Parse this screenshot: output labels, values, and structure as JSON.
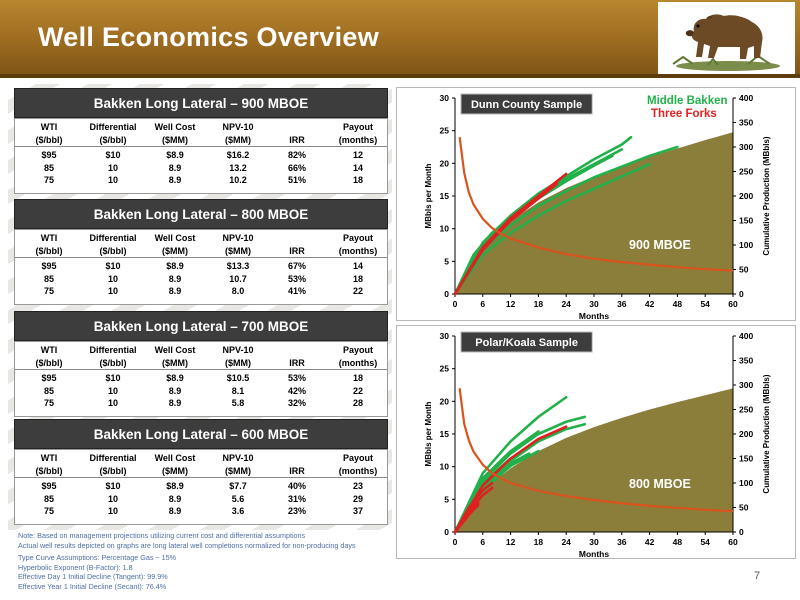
{
  "header": {
    "title": "Well Economics Overview"
  },
  "tables": [
    {
      "title": "Bakken Long Lateral – 900 MBOE",
      "head1": [
        "WTI",
        "Differential",
        "Well Cost",
        "NPV-10",
        "",
        "Payout"
      ],
      "head2": [
        "($/bbl)",
        "($/bbl)",
        "($MM)",
        "($MM)",
        "IRR",
        "(months)"
      ],
      "rows": [
        [
          "$95",
          "$10",
          "$8.9",
          "$16.2",
          "82%",
          "12"
        ],
        [
          "85",
          "10",
          "8.9",
          "13.2",
          "66%",
          "14"
        ],
        [
          "75",
          "10",
          "8.9",
          "10.2",
          "51%",
          "18"
        ]
      ]
    },
    {
      "title": "Bakken Long Lateral – 800 MBOE",
      "head1": [
        "WTI",
        "Differential",
        "Well Cost",
        "NPV-10",
        "",
        "Payout"
      ],
      "head2": [
        "($/bbl)",
        "($/bbl)",
        "($MM)",
        "($MM)",
        "IRR",
        "(months)"
      ],
      "rows": [
        [
          "$95",
          "$10",
          "$8.9",
          "$13.3",
          "67%",
          "14"
        ],
        [
          "85",
          "10",
          "8.9",
          "10.7",
          "53%",
          "18"
        ],
        [
          "75",
          "10",
          "8.9",
          "8.0",
          "41%",
          "22"
        ]
      ]
    },
    {
      "title": "Bakken Long Lateral – 700 MBOE",
      "head1": [
        "WTI",
        "Differential",
        "Well Cost",
        "NPV-10",
        "",
        "Payout"
      ],
      "head2": [
        "($/bbl)",
        "($/bbl)",
        "($MM)",
        "($MM)",
        "IRR",
        "(months)"
      ],
      "rows": [
        [
          "$95",
          "$10",
          "$8.9",
          "$10.5",
          "53%",
          "18"
        ],
        [
          "85",
          "10",
          "8.9",
          "8.1",
          "42%",
          "22"
        ],
        [
          "75",
          "10",
          "8.9",
          "5.8",
          "32%",
          "28"
        ]
      ]
    },
    {
      "title": "Bakken Long Lateral – 600 MBOE",
      "head1": [
        "WTI",
        "Differential",
        "Well Cost",
        "NPV-10",
        "",
        "Payout"
      ],
      "head2": [
        "($/bbl)",
        "($/bbl)",
        "($MM)",
        "($MM)",
        "IRR",
        "(months)"
      ],
      "rows": [
        [
          "$95",
          "$10",
          "$8.9",
          "$7.7",
          "40%",
          "23"
        ],
        [
          "85",
          "10",
          "8.9",
          "5.6",
          "31%",
          "29"
        ],
        [
          "75",
          "10",
          "8.9",
          "3.6",
          "23%",
          "37"
        ]
      ]
    }
  ],
  "notes": {
    "line1": "Note: Based on management projections utilizing current cost and differential assumptions",
    "line2": "Actual well results depicted on graphs are long lateral well completions normalized for non-producing days",
    "line3": "Type Curve Assumptions:  Percentage Gas ~ 15%",
    "line4": "Hyperbolic Exponent (B-Factor): 1.8",
    "line5": "Effective Day 1 Initial Decline (Tangent): 99.9%",
    "line6": "Effective Year 1 Initial Decline (Secant): 76.4%"
  },
  "page_number": "7",
  "colors": {
    "header_gold": "#a77425",
    "table_header": "#3d3d3d",
    "middle_bakken": "#22b04a",
    "three_forks": "#e02020",
    "type_curve": "#d9531e",
    "cumulative_area": "#8b7d3a",
    "sample_label_bg": "#3d3d3d"
  },
  "chart_data": [
    {
      "type": "line",
      "sample_label": "Dunn County Sample",
      "legend": [
        "Middle Bakken",
        "Three Forks"
      ],
      "annotation": "900 MBOE",
      "xlabel": "Months",
      "ylabel": "MBbls per Month",
      "y2label": "Cumulative Production (MBbls)",
      "xlim": [
        0,
        60
      ],
      "ylim": [
        0,
        30
      ],
      "y2lim": [
        0,
        400
      ],
      "xticks": [
        0,
        6,
        12,
        18,
        24,
        30,
        36,
        42,
        48,
        54,
        60
      ],
      "yticks": [
        0,
        5,
        10,
        15,
        20,
        25,
        30
      ],
      "y2ticks": [
        0,
        50,
        100,
        150,
        200,
        250,
        300,
        350,
        400
      ],
      "cumulative_area": {
        "x": [
          0,
          3,
          6,
          12,
          18,
          24,
          30,
          36,
          42,
          48,
          54,
          60
        ],
        "y": [
          0,
          60,
          98,
          150,
          187,
          216,
          240,
          261,
          280,
          297,
          314,
          330
        ]
      },
      "type_curve": {
        "x": [
          1,
          2,
          3,
          4,
          6,
          8,
          10,
          12,
          18,
          24,
          30,
          36,
          42,
          48,
          54,
          60
        ],
        "y": [
          24,
          18.5,
          15.5,
          13.7,
          11.5,
          10.1,
          9.2,
          8.5,
          7.1,
          6.1,
          5.4,
          4.9,
          4.5,
          4.1,
          3.8,
          3.6
        ]
      },
      "series": [
        {
          "name": "Middle Bakken",
          "x": [
            0,
            6,
            12,
            18,
            24,
            30,
            36,
            38
          ],
          "y": [
            0,
            105,
            160,
            205,
            240,
            275,
            305,
            320
          ]
        },
        {
          "name": "Middle Bakken",
          "x": [
            0,
            6,
            12,
            18,
            24,
            30,
            36,
            42,
            48
          ],
          "y": [
            0,
            90,
            140,
            180,
            210,
            238,
            260,
            282,
            300
          ]
        },
        {
          "name": "Middle Bakken",
          "x": [
            0,
            6,
            12,
            18,
            24,
            30,
            36
          ],
          "y": [
            0,
            100,
            155,
            200,
            235,
            265,
            295
          ]
        },
        {
          "name": "Middle Bakken",
          "x": [
            0,
            6,
            12,
            18,
            24,
            30,
            36,
            42
          ],
          "y": [
            0,
            80,
            125,
            160,
            190,
            215,
            240,
            265
          ]
        },
        {
          "name": "Middle Bakken",
          "x": [
            0,
            6,
            12,
            18,
            24,
            30,
            34
          ],
          "y": [
            0,
            95,
            150,
            195,
            230,
            262,
            282
          ]
        },
        {
          "name": "Middle Bakken",
          "x": [
            0,
            4,
            8,
            10
          ],
          "y": [
            0,
            80,
            125,
            140
          ]
        },
        {
          "name": "Middle Bakken",
          "x": [
            0,
            6,
            12,
            18,
            24
          ],
          "y": [
            0,
            95,
            150,
            195,
            235
          ]
        },
        {
          "name": "Three Forks",
          "x": [
            0,
            6,
            12,
            18,
            24
          ],
          "y": [
            0,
            95,
            155,
            200,
            245
          ]
        },
        {
          "name": "Three Forks",
          "x": [
            0,
            6,
            12,
            18,
            22
          ],
          "y": [
            0,
            90,
            150,
            195,
            225
          ]
        }
      ]
    },
    {
      "type": "line",
      "sample_label": "Polar/Koala Sample",
      "annotation": "800 MBOE",
      "xlabel": "Months",
      "ylabel": "MBbls per Month",
      "y2label": "Cumulative Production (MBbls)",
      "xlim": [
        0,
        60
      ],
      "ylim": [
        0,
        30
      ],
      "y2lim": [
        0,
        400
      ],
      "xticks": [
        0,
        6,
        12,
        18,
        24,
        30,
        36,
        42,
        48,
        54,
        60
      ],
      "yticks": [
        0,
        5,
        10,
        15,
        20,
        25,
        30
      ],
      "y2ticks": [
        0,
        50,
        100,
        150,
        200,
        250,
        300,
        350,
        400
      ],
      "cumulative_area": {
        "x": [
          0,
          3,
          6,
          12,
          18,
          24,
          30,
          36,
          42,
          48,
          54,
          60
        ],
        "y": [
          0,
          52,
          85,
          130,
          165,
          192,
          214,
          233,
          250,
          265,
          279,
          293
        ]
      },
      "type_curve": {
        "x": [
          1,
          2,
          3,
          4,
          6,
          8,
          10,
          12,
          18,
          24,
          30,
          36,
          42,
          48,
          54,
          60
        ],
        "y": [
          22,
          16.5,
          14,
          12.3,
          10.3,
          9.0,
          8.2,
          7.5,
          6.3,
          5.5,
          4.9,
          4.4,
          4.0,
          3.7,
          3.4,
          3.2
        ]
      },
      "series": [
        {
          "name": "Middle Bakken",
          "x": [
            0,
            6,
            12,
            18,
            24
          ],
          "y": [
            0,
            120,
            185,
            235,
            275
          ]
        },
        {
          "name": "Middle Bakken",
          "x": [
            0,
            6,
            12,
            18,
            24,
            28
          ],
          "y": [
            0,
            105,
            160,
            200,
            225,
            235
          ]
        },
        {
          "name": "Middle Bakken",
          "x": [
            0,
            6,
            12,
            18,
            24,
            28
          ],
          "y": [
            0,
            95,
            145,
            185,
            210,
            220
          ]
        },
        {
          "name": "Middle Bakken",
          "x": [
            0,
            6,
            12,
            18
          ],
          "y": [
            0,
            110,
            165,
            205
          ]
        },
        {
          "name": "Middle Bakken",
          "x": [
            0,
            6,
            12,
            18
          ],
          "y": [
            0,
            85,
            135,
            165
          ]
        },
        {
          "name": "Middle Bakken",
          "x": [
            0,
            6,
            12,
            18
          ],
          "y": [
            0,
            100,
            150,
            185
          ]
        },
        {
          "name": "Middle Bakken",
          "x": [
            0,
            6,
            12,
            16
          ],
          "y": [
            0,
            90,
            140,
            160
          ]
        },
        {
          "name": "Middle Bakken",
          "x": [
            0,
            6,
            10
          ],
          "y": [
            0,
            95,
            130
          ]
        },
        {
          "name": "Middle Bakken",
          "x": [
            0,
            4,
            8
          ],
          "y": [
            0,
            70,
            105
          ]
        },
        {
          "name": "Middle Bakken",
          "x": [
            0,
            4,
            8
          ],
          "y": [
            0,
            65,
            100
          ]
        },
        {
          "name": "Three Forks",
          "x": [
            0,
            6,
            12,
            18,
            24
          ],
          "y": [
            0,
            95,
            150,
            190,
            215
          ]
        },
        {
          "name": "Three Forks",
          "x": [
            0,
            3,
            6,
            8
          ],
          "y": [
            0,
            50,
            85,
            100
          ]
        },
        {
          "name": "Three Forks",
          "x": [
            0,
            3,
            6,
            8
          ],
          "y": [
            0,
            45,
            75,
            90
          ]
        },
        {
          "name": "Three Forks",
          "x": [
            0,
            3,
            5
          ],
          "y": [
            0,
            40,
            60
          ]
        },
        {
          "name": "Three Forks",
          "x": [
            0,
            3,
            5
          ],
          "y": [
            0,
            35,
            55
          ]
        }
      ]
    }
  ]
}
